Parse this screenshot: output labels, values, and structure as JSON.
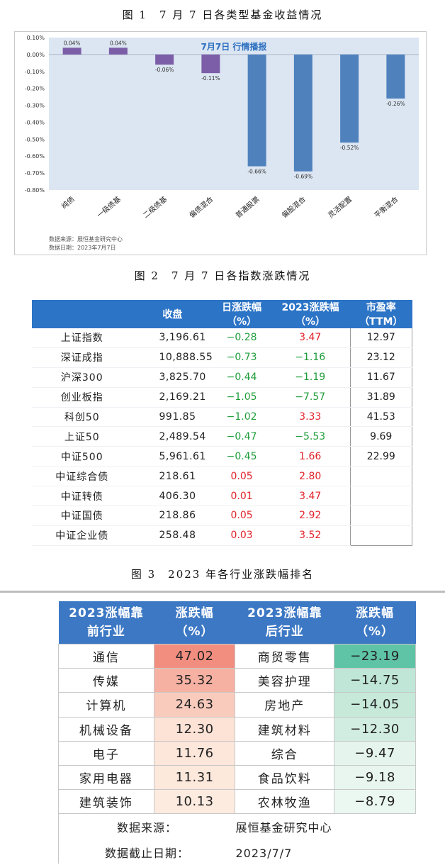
{
  "captions": {
    "fig1": "图 1　7 月 7 日各类型基金收益情况",
    "fig2": "图 2　7 月 7 日各指数涨跌情况",
    "fig3": "图 3　2023 年各行业涨跌幅排名"
  },
  "chart_data": {
    "type": "bar",
    "title": "7月7日  行情播报",
    "categories": [
      "纯债",
      "一级债基",
      "二级债基",
      "偏债混合",
      "普通股票",
      "偏股混合",
      "灵活配置",
      "平衡混合"
    ],
    "values": [
      0.04,
      0.04,
      -0.06,
      -0.11,
      -0.66,
      -0.69,
      -0.52,
      -0.26
    ],
    "value_labels": [
      "0.04%",
      "0.04%",
      "-0.06%",
      "-0.11%",
      "-0.66%",
      "-0.69%",
      "-0.52%",
      "-0.26%"
    ],
    "yticks": [
      "0.10%",
      "0.00%",
      "-0.10%",
      "-0.20%",
      "-0.30%",
      "-0.40%",
      "-0.50%",
      "-0.60%",
      "-0.70%",
      "-0.80%"
    ],
    "ylim": [
      -0.8,
      0.1
    ],
    "colors": [
      "#7b5ea7",
      "#7b5ea7",
      "#7b5ea7",
      "#7b5ea7",
      "#4f81bd",
      "#4f81bd",
      "#4f81bd",
      "#4f81bd"
    ],
    "plot_bg": "#dce6f2",
    "notes": [
      "数据来源：展恒基金研究中心",
      "数据日期：2023年7月7日"
    ]
  },
  "index_table": {
    "headers": [
      {
        "l1": "",
        "l2": ""
      },
      {
        "l1": "收盘",
        "l2": ""
      },
      {
        "l1": "日涨跌幅",
        "l2": "（%）"
      },
      {
        "l1": "2023涨跌幅",
        "l2": "（%）"
      },
      {
        "l1": "市盈率",
        "l2": "（TTM）"
      }
    ],
    "rows": [
      {
        "name": "上证指数",
        "close": "3,196.61",
        "day": "−0.28",
        "ytd": "3.47",
        "pe": "12.97"
      },
      {
        "name": "深证成指",
        "close": "10,888.55",
        "day": "−0.73",
        "ytd": "−1.16",
        "pe": "23.12"
      },
      {
        "name": "沪深300",
        "close": "3,825.70",
        "day": "−0.44",
        "ytd": "−1.19",
        "pe": "11.67"
      },
      {
        "name": "创业板指",
        "close": "2,169.21",
        "day": "−1.05",
        "ytd": "−7.57",
        "pe": "31.89"
      },
      {
        "name": "科创50",
        "close": "991.85",
        "day": "−1.02",
        "ytd": "3.33",
        "pe": "41.53"
      },
      {
        "name": "上证50",
        "close": "2,489.54",
        "day": "−0.47",
        "ytd": "−5.53",
        "pe": "9.69"
      },
      {
        "name": "中证500",
        "close": "5,961.61",
        "day": "−0.45",
        "ytd": "1.66",
        "pe": "22.99"
      },
      {
        "name": "中证综合债",
        "close": "218.61",
        "day": "0.05",
        "ytd": "2.80",
        "pe": ""
      },
      {
        "name": "中证转债",
        "close": "406.30",
        "day": "0.01",
        "ytd": "3.47",
        "pe": ""
      },
      {
        "name": "中证国债",
        "close": "218.86",
        "day": "0.05",
        "ytd": "2.92",
        "pe": ""
      },
      {
        "name": "中证企业债",
        "close": "258.48",
        "day": "0.03",
        "ytd": "3.52",
        "pe": ""
      }
    ]
  },
  "industry_table": {
    "headers": [
      {
        "l1": "2023涨幅靠",
        "l2": "前行业"
      },
      {
        "l1": "涨跌幅",
        "l2": "（%）"
      },
      {
        "l1": "2023涨幅靠",
        "l2": "后行业"
      },
      {
        "l1": "涨跌幅",
        "l2": "（%）"
      }
    ],
    "rows": [
      {
        "top": "通信",
        "top_val": "47.02",
        "top_color": "#f28e7f",
        "bot": "商贸零售",
        "bot_val": "−23.19",
        "bot_color": "#5fc3a5"
      },
      {
        "top": "传媒",
        "top_val": "35.32",
        "top_color": "#f6b1a3",
        "bot": "美容护理",
        "bot_val": "−14.75",
        "bot_color": "#bfe6d6"
      },
      {
        "top": "计算机",
        "top_val": "24.63",
        "top_color": "#f9cbbd",
        "bot": "房地产",
        "bot_val": "−14.05",
        "bot_color": "#c6e9da"
      },
      {
        "top": "机械设备",
        "top_val": "12.30",
        "top_color": "#fce3d6",
        "bot": "建筑材料",
        "bot_val": "−12.30",
        "bot_color": "#d1ede1"
      },
      {
        "top": "电子",
        "top_val": "11.76",
        "top_color": "#fde6da",
        "bot": "综合",
        "bot_val": "−9.47",
        "bot_color": "#e5f5ed"
      },
      {
        "top": "家用电器",
        "top_val": "11.31",
        "top_color": "#fde8dc",
        "bot": "食品饮料",
        "bot_val": "−9.18",
        "bot_color": "#e8f6ef"
      },
      {
        "top": "建筑装饰",
        "top_val": "10.13",
        "top_color": "#fdebe0",
        "bot": "农林牧渔",
        "bot_val": "−8.79",
        "bot_color": "#ebf7f1"
      }
    ],
    "source_label": "数据来源：",
    "source_value": "展恒基金研究中心",
    "date_label": "数据截止日期：",
    "date_value": "2023/7/7"
  }
}
